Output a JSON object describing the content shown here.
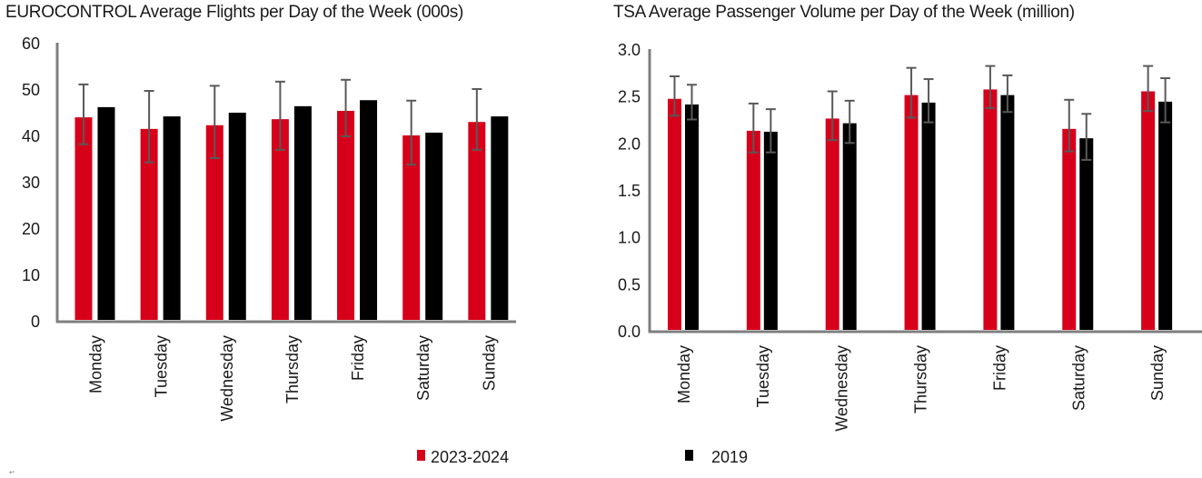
{
  "colors": {
    "series_a": "#d7001a",
    "series_b": "#000000",
    "axis": "#7f7f7f",
    "error_bar": "#595959"
  },
  "legend": [
    {
      "label": "2023-2024",
      "color": "#d7001a"
    },
    {
      "label": "2019",
      "color": "#000000"
    }
  ],
  "corner_mark": "↩",
  "chart_data": [
    {
      "type": "bar",
      "title": "EUROCONTROL Average Flights per Day of the Week (000s)",
      "xlabel": "",
      "ylabel": "",
      "ylim": [
        0,
        60
      ],
      "yticks": [
        0,
        10,
        20,
        30,
        40,
        50,
        60
      ],
      "ytick_labels": [
        "0",
        "10",
        "20",
        "30",
        "40",
        "50",
        "60"
      ],
      "categories": [
        "Monday",
        "Tuesday",
        "Wednesday",
        "Thursday",
        "Friday",
        "Saturday",
        "Sunday"
      ],
      "grid": false,
      "series": [
        {
          "name": "2023-2024",
          "values": [
            43.9,
            41.4,
            42.2,
            43.5,
            45.3,
            40.0,
            42.9
          ],
          "error_high": [
            51.0,
            49.6,
            50.7,
            51.6,
            52.0,
            47.5,
            50.0
          ],
          "error_low": [
            38.1,
            34.2,
            35.1,
            36.9,
            39.8,
            33.7,
            36.9
          ]
        },
        {
          "name": "2019",
          "values": [
            46.1,
            44.1,
            44.9,
            46.3,
            47.6,
            40.6,
            44.1
          ]
        }
      ]
    },
    {
      "type": "bar",
      "title": "TSA Average Passenger Volume per Day of the Week (million)",
      "xlabel": "",
      "ylabel": "",
      "ylim": [
        0,
        3.0
      ],
      "yticks": [
        0,
        0.5,
        1.0,
        1.5,
        2.0,
        2.5,
        3.0
      ],
      "ytick_labels": [
        "0.0",
        "0.5",
        "1.0",
        "1.5",
        "2.0",
        "2.5",
        "3.0"
      ],
      "categories": [
        "Monday",
        "Tuesday",
        "Wednesday",
        "Thursday",
        "Friday",
        "Saturday",
        "Sunday"
      ],
      "grid": false,
      "series": [
        {
          "name": "2023-2024",
          "values": [
            2.47,
            2.13,
            2.26,
            2.51,
            2.57,
            2.15,
            2.55
          ],
          "error_high": [
            2.71,
            2.42,
            2.55,
            2.8,
            2.82,
            2.46,
            2.82
          ],
          "error_low": [
            2.29,
            1.9,
            2.03,
            2.27,
            2.37,
            1.91,
            2.34
          ]
        },
        {
          "name": "2019",
          "values": [
            2.41,
            2.12,
            2.21,
            2.43,
            2.51,
            2.05,
            2.44
          ],
          "error_high": [
            2.62,
            2.36,
            2.45,
            2.68,
            2.72,
            2.31,
            2.69
          ],
          "error_low": [
            2.25,
            1.9,
            2.0,
            2.22,
            2.33,
            1.82,
            2.22
          ]
        }
      ]
    }
  ]
}
